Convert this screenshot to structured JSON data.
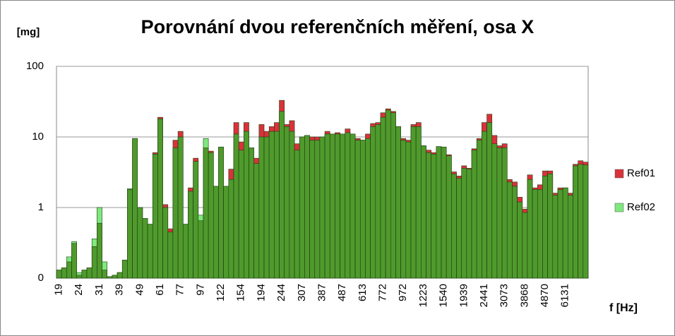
{
  "chart_data": {
    "type": "bar",
    "title": "Porovnání dvou referenčních měření, osa X",
    "y_label": "[mg]",
    "x_label": "f  [Hz]",
    "log_scale": true,
    "grid": true,
    "legend_position": "right",
    "ylim": [
      0.1,
      100
    ],
    "yticks": [
      {
        "value": 0.1,
        "label": "0"
      },
      1,
      10,
      100
    ],
    "overlap_color": "#4f9a2c",
    "categories": [
      "19",
      null,
      null,
      null,
      "24",
      null,
      null,
      null,
      "31",
      null,
      null,
      null,
      "39",
      null,
      null,
      null,
      "49",
      null,
      null,
      null,
      "61",
      null,
      null,
      null,
      "77",
      null,
      null,
      null,
      "97",
      null,
      null,
      null,
      "122",
      null,
      null,
      null,
      "154",
      null,
      null,
      null,
      "194",
      null,
      null,
      null,
      "244",
      null,
      null,
      null,
      "307",
      null,
      null,
      null,
      "387",
      null,
      null,
      null,
      "487",
      null,
      null,
      null,
      "613",
      null,
      null,
      null,
      "772",
      null,
      null,
      null,
      "972",
      null,
      null,
      null,
      "1223",
      null,
      null,
      null,
      "1540",
      null,
      null,
      null,
      "1939",
      null,
      null,
      null,
      "2441",
      null,
      null,
      null,
      "3073",
      null,
      null,
      null,
      "3868",
      null,
      null,
      null,
      "4870",
      null,
      null,
      null,
      "6131",
      null,
      null,
      null,
      null
    ],
    "series": [
      {
        "name": "Ref01",
        "color": "#d9323a",
        "values": [
          0.13,
          0.14,
          0.17,
          0.31,
          0.11,
          0.13,
          0.14,
          0.28,
          0.6,
          0.13,
          0.105,
          0.11,
          0.12,
          0.18,
          1.8,
          9.5,
          1.0,
          0.7,
          0.58,
          6.0,
          19,
          1.1,
          0.5,
          9,
          12,
          0.58,
          1.9,
          5.0,
          0.65,
          7,
          6.3,
          2.0,
          7.2,
          2.0,
          3.5,
          16,
          8.5,
          16,
          7,
          5,
          15,
          12,
          14,
          16,
          33,
          15,
          17,
          8,
          10,
          10.5,
          10,
          10,
          10,
          12,
          11,
          11.5,
          11,
          13,
          11,
          9.5,
          9,
          11,
          15.5,
          16,
          22,
          25,
          23,
          14,
          9.5,
          9,
          15,
          16,
          7.5,
          6.5,
          6,
          7.3,
          7.2,
          5.6,
          3.2,
          2.8,
          3.9,
          3.6,
          6.8,
          9.5,
          16,
          21,
          10.5,
          7.5,
          8,
          2.5,
          2.3,
          1.4,
          0.95,
          2.9,
          1.9,
          2.1,
          3.3,
          3.3,
          1.6,
          1.9,
          1.9,
          1.6,
          4.1,
          4.6,
          4.4
        ]
      },
      {
        "name": "Ref02",
        "color": "#7ee87e",
        "values": [
          0.13,
          0.14,
          0.2,
          0.33,
          0.12,
          0.13,
          0.14,
          0.36,
          1.0,
          0.17,
          0.105,
          0.11,
          0.12,
          0.18,
          1.85,
          9.5,
          1.0,
          0.7,
          0.58,
          5.7,
          18,
          1.0,
          0.45,
          7,
          10,
          0.58,
          1.7,
          4.5,
          0.78,
          9.5,
          6.0,
          2.0,
          7.2,
          2.0,
          2.5,
          11,
          6.5,
          12,
          7,
          4.2,
          10,
          10,
          12,
          12,
          23,
          14,
          12,
          6.5,
          10,
          10.5,
          9,
          9,
          10,
          11,
          11,
          11,
          11,
          11.5,
          11,
          9,
          9,
          9.5,
          14,
          15,
          19,
          24,
          22,
          14,
          9,
          8.5,
          14,
          14,
          7.5,
          6,
          5.7,
          7.3,
          7.2,
          5.4,
          3.0,
          2.6,
          3.6,
          3.5,
          6.5,
          9,
          12,
          16,
          8,
          7,
          7,
          2.3,
          2.0,
          1.2,
          0.85,
          2.5,
          1.8,
          1.8,
          2.8,
          3.0,
          1.5,
          1.8,
          1.9,
          1.5,
          3.9,
          4.1,
          4.0
        ]
      }
    ]
  }
}
